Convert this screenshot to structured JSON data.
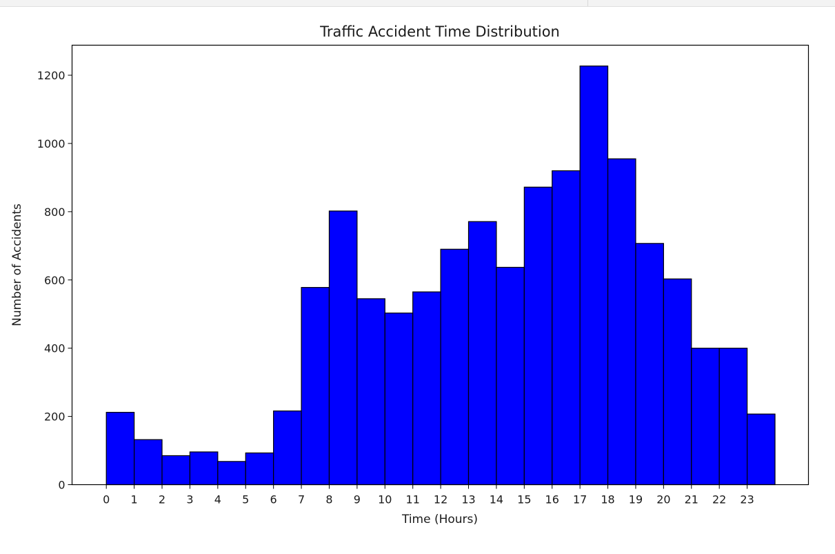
{
  "chart_data": {
    "type": "bar",
    "title": "Traffic Accident Time Distribution",
    "xlabel": "Time (Hours)",
    "ylabel": "Number of Accidents",
    "categories": [
      "0",
      "1",
      "2",
      "3",
      "4",
      "5",
      "6",
      "7",
      "8",
      "9",
      "10",
      "11",
      "12",
      "13",
      "14",
      "15",
      "16",
      "17",
      "18",
      "19",
      "20",
      "21",
      "22",
      "23"
    ],
    "values": [
      212,
      132,
      85,
      96,
      68,
      93,
      216,
      578,
      802,
      545,
      503,
      565,
      690,
      771,
      637,
      872,
      920,
      1227,
      955,
      707,
      603,
      400,
      400,
      207
    ],
    "yticks": [
      "0",
      "200",
      "400",
      "600",
      "800",
      "1000",
      "1200"
    ],
    "ylim": [
      0,
      1288
    ],
    "xlim": [
      -1.23,
      25.2
    ],
    "bar_color": "#0000ff",
    "edge_color": "#000000",
    "grid": false,
    "legend": false
  }
}
